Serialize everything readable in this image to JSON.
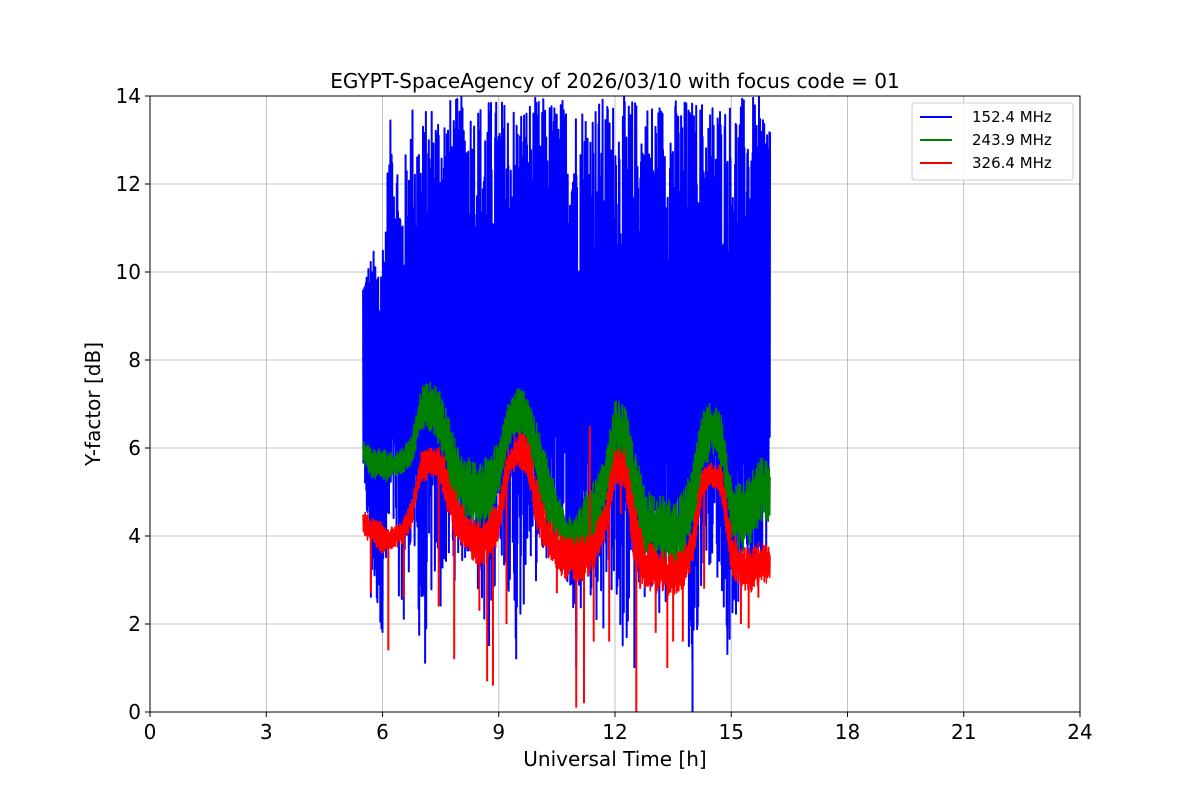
{
  "chart_data": {
    "type": "line",
    "title": "EGYPT-SpaceAgency of 2026/03/10 with focus code = 01",
    "xlabel": "Universal Time [h]",
    "ylabel": "Y-factor [dB]",
    "xlim": [
      0,
      24
    ],
    "ylim": [
      0,
      14
    ],
    "xticks": [
      0,
      3,
      6,
      9,
      12,
      15,
      18,
      21,
      24
    ],
    "yticks": [
      0,
      2,
      4,
      6,
      8,
      10,
      12,
      14
    ],
    "grid": true,
    "legend_position": "top-right",
    "series": [
      {
        "name": "152.4 MHz",
        "color": "#0000ff",
        "x": [
          5.5,
          5.75,
          6.0,
          6.25,
          6.5,
          6.75,
          7.0,
          7.25,
          7.5,
          7.75,
          8.0,
          8.25,
          8.5,
          8.75,
          9.0,
          9.25,
          9.5,
          9.75,
          10.0,
          10.25,
          10.5,
          10.75,
          11.0,
          11.25,
          11.5,
          11.75,
          12.0,
          12.25,
          12.5,
          12.75,
          13.0,
          13.25,
          13.5,
          13.75,
          14.0,
          14.25,
          14.5,
          14.75,
          15.0,
          15.25,
          15.5,
          15.75,
          16.0
        ],
        "upper": [
          10.2,
          10.5,
          11.0,
          14.0,
          12.0,
          14.0,
          13.5,
          14.0,
          14.0,
          14.0,
          14.0,
          14.0,
          14.0,
          14.0,
          14.0,
          14.0,
          14.0,
          14.0,
          14.0,
          14.0,
          14.0,
          14.0,
          14.0,
          14.0,
          14.0,
          14.0,
          14.0,
          14.0,
          14.0,
          14.0,
          14.0,
          14.0,
          14.0,
          14.0,
          14.0,
          14.0,
          14.0,
          14.0,
          14.0,
          14.0,
          14.0,
          14.0,
          14.0
        ],
        "lower": [
          5.2,
          2.6,
          1.8,
          3.8,
          2.1,
          3.6,
          1.1,
          2.4,
          3.2,
          2.8,
          3.2,
          3.4,
          2.5,
          1.5,
          3.8,
          2.7,
          1.2,
          3.2,
          2.9,
          3.3,
          3.6,
          3.0,
          1.0,
          3.4,
          1.9,
          3.1,
          2.5,
          1.0,
          3.2,
          2.4,
          2.6,
          2.0,
          2.6,
          3.1,
          0.0,
          3.2,
          3.4,
          2.6,
          1.3,
          2.8,
          2.6,
          3.2,
          3.4
        ],
        "spikes": [
          [
            5.55,
            5.2
          ],
          [
            5.7,
            2.6
          ],
          [
            6.0,
            1.8
          ],
          [
            6.55,
            2.1
          ],
          [
            7.1,
            1.1
          ],
          [
            7.5,
            2.4
          ],
          [
            8.75,
            1.5
          ],
          [
            9.45,
            1.2
          ],
          [
            10.6,
            3.2
          ],
          [
            11.0,
            1.0
          ],
          [
            11.7,
            1.9
          ],
          [
            12.5,
            1.0
          ],
          [
            14.0,
            0.0
          ],
          [
            14.9,
            1.3
          ]
        ]
      },
      {
        "name": "243.9 MHz",
        "color": "#008000",
        "x": [
          5.5,
          5.75,
          6.0,
          6.25,
          6.5,
          6.75,
          7.0,
          7.25,
          7.5,
          7.75,
          8.0,
          8.25,
          8.5,
          8.75,
          9.0,
          9.25,
          9.5,
          9.75,
          10.0,
          10.25,
          10.5,
          10.75,
          11.0,
          11.25,
          11.5,
          11.75,
          12.0,
          12.25,
          12.5,
          12.75,
          13.0,
          13.25,
          13.5,
          13.75,
          14.0,
          14.25,
          14.5,
          14.75,
          15.0,
          15.25,
          15.5,
          15.75,
          16.0
        ],
        "upper": [
          6.2,
          6.0,
          6.0,
          5.9,
          6.0,
          6.3,
          7.4,
          7.5,
          7.3,
          6.6,
          5.9,
          5.8,
          5.6,
          6.0,
          6.1,
          7.1,
          7.4,
          7.3,
          6.5,
          5.8,
          5.0,
          4.6,
          4.5,
          5.0,
          5.3,
          5.8,
          7.1,
          7.0,
          6.0,
          5.2,
          5.0,
          4.9,
          4.8,
          5.0,
          5.6,
          6.8,
          7.1,
          6.8,
          5.4,
          5.2,
          5.4,
          5.8,
          5.7
        ],
        "lower": [
          5.6,
          5.3,
          5.2,
          5.3,
          5.4,
          5.6,
          6.4,
          6.3,
          6.0,
          5.0,
          4.4,
          4.3,
          4.2,
          4.3,
          4.9,
          6.0,
          6.3,
          6.0,
          5.1,
          4.3,
          3.8,
          3.5,
          3.3,
          3.5,
          4.0,
          4.6,
          5.8,
          5.6,
          4.2,
          3.5,
          3.4,
          3.3,
          3.2,
          3.4,
          4.0,
          5.4,
          5.8,
          5.4,
          4.0,
          3.6,
          3.8,
          4.3,
          4.3
        ]
      },
      {
        "name": "326.4 MHz",
        "color": "#ff0000",
        "x": [
          5.5,
          5.75,
          6.0,
          6.25,
          6.5,
          6.75,
          7.0,
          7.25,
          7.5,
          7.75,
          8.0,
          8.25,
          8.5,
          8.75,
          9.0,
          9.25,
          9.5,
          9.75,
          10.0,
          10.25,
          10.5,
          10.75,
          11.0,
          11.25,
          11.5,
          11.75,
          12.0,
          12.25,
          12.5,
          12.75,
          13.0,
          13.25,
          13.5,
          13.75,
          14.0,
          14.25,
          14.5,
          14.75,
          15.0,
          15.25,
          15.5,
          15.75,
          16.0
        ],
        "upper": [
          4.6,
          4.4,
          4.3,
          4.2,
          4.3,
          4.8,
          5.9,
          6.1,
          6.0,
          5.4,
          4.8,
          4.5,
          4.3,
          4.5,
          4.9,
          6.0,
          6.4,
          6.3,
          5.2,
          4.5,
          4.2,
          4.1,
          4.0,
          4.0,
          4.3,
          4.8,
          6.0,
          6.0,
          4.8,
          3.9,
          3.8,
          3.7,
          3.6,
          3.7,
          4.2,
          5.5,
          5.7,
          5.6,
          4.2,
          3.8,
          3.7,
          3.9,
          3.8
        ],
        "lower": [
          4.0,
          3.8,
          3.6,
          3.7,
          3.8,
          4.2,
          5.2,
          5.3,
          5.2,
          4.3,
          3.7,
          3.5,
          3.3,
          3.4,
          3.9,
          5.2,
          5.6,
          5.3,
          4.0,
          3.5,
          3.2,
          3.0,
          2.9,
          3.0,
          3.3,
          3.9,
          5.2,
          5.1,
          3.3,
          2.8,
          2.7,
          2.7,
          2.6,
          2.8,
          3.3,
          4.9,
          5.1,
          4.8,
          3.1,
          2.8,
          2.7,
          2.9,
          2.9
        ],
        "spikes": [
          [
            5.7,
            2.7
          ],
          [
            6.15,
            1.4
          ],
          [
            6.55,
            2.6
          ],
          [
            7.45,
            2.4
          ],
          [
            7.85,
            1.2
          ],
          [
            8.5,
            2.3
          ],
          [
            8.7,
            0.7
          ],
          [
            8.85,
            0.6
          ],
          [
            9.2,
            2.0
          ],
          [
            10.5,
            2.7
          ],
          [
            11.0,
            0.1
          ],
          [
            11.2,
            0.2
          ],
          [
            11.35,
            6.5
          ],
          [
            11.45,
            1.6
          ],
          [
            11.85,
            1.6
          ],
          [
            12.15,
            4.5
          ],
          [
            12.55,
            0.0
          ],
          [
            12.65,
            2.8
          ],
          [
            12.8,
            3.0
          ],
          [
            13.05,
            1.8
          ],
          [
            13.35,
            1.0
          ],
          [
            13.5,
            1.6
          ],
          [
            13.75,
            1.6
          ],
          [
            14.3,
            2.8
          ],
          [
            15.25,
            2.0
          ],
          [
            15.45,
            1.9
          ],
          [
            15.7,
            2.6
          ]
        ]
      }
    ]
  }
}
